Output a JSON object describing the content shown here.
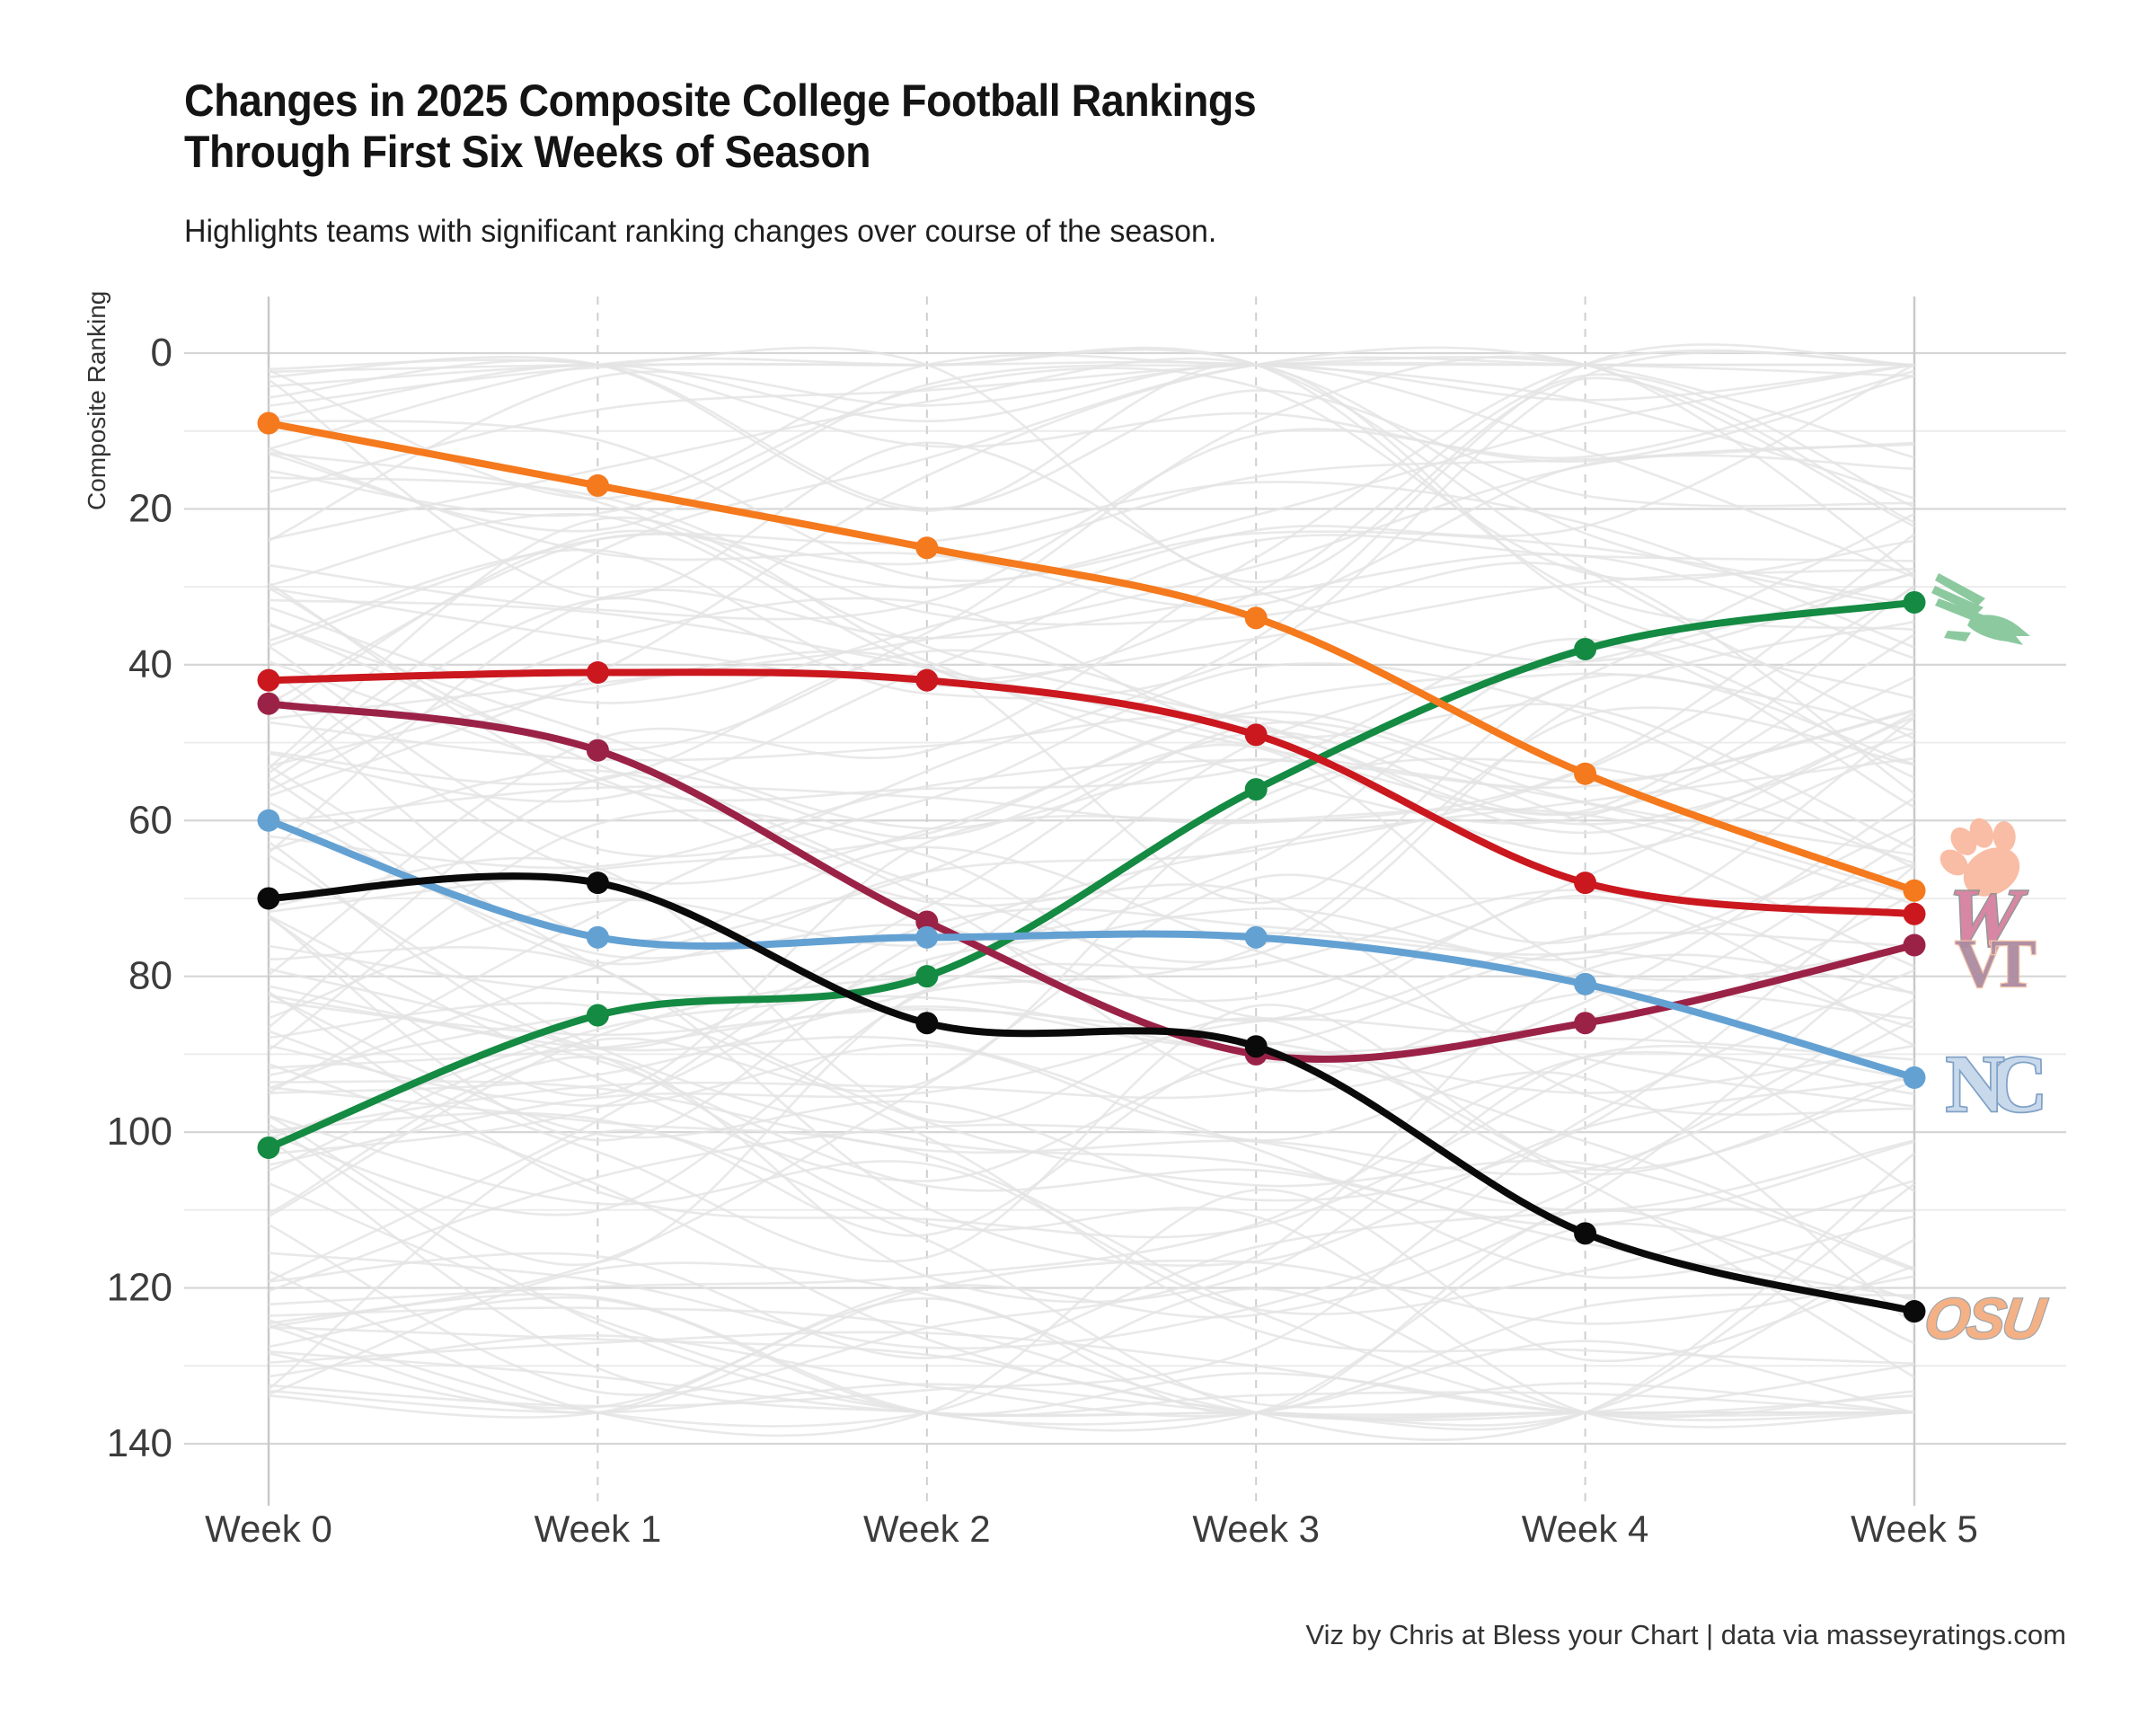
{
  "page": {
    "title_line1": "Changes in 2025 Composite College Football Rankings",
    "title_line2": "Through First Six Weeks of Season",
    "subtitle": "Highlights teams with significant ranking changes over course of the season.",
    "footer": "Viz by Chris at Bless your Chart | data via masseyratings.com"
  },
  "chart_data": {
    "type": "line",
    "title": "Changes in 2025 Composite College Football Rankings Through First Six Weeks of Season",
    "subtitle": "Highlights teams with significant ranking changes over course of the season.",
    "xlabel": "",
    "ylabel": "Composite Ranking",
    "categories": [
      "Week 0",
      "Week 1",
      "Week 2",
      "Week 3",
      "Week 4",
      "Week 5"
    ],
    "y_axis": {
      "ticks": [
        0,
        20,
        40,
        60,
        80,
        100,
        120,
        140
      ],
      "minor_ticks": [
        10,
        30,
        50,
        70,
        90,
        110,
        130
      ],
      "range": [
        0,
        140
      ],
      "inverted": true
    },
    "grid": true,
    "legend_position": "right-logos",
    "series": [
      {
        "name": "North Texas",
        "logo": "north-texas",
        "color": "#148a42",
        "values": [
          102,
          85,
          80,
          56,
          38,
          32
        ]
      },
      {
        "name": "Clemson",
        "logo": "clemson",
        "color": "#f5791d",
        "values": [
          9,
          17,
          25,
          34,
          54,
          69
        ]
      },
      {
        "name": "Wisconsin",
        "logo": "wisconsin",
        "color": "#cb171e",
        "values": [
          42,
          41,
          42,
          49,
          68,
          72
        ]
      },
      {
        "name": "Virginia Tech",
        "logo": "virginia-tech",
        "color": "#9b2247",
        "values": [
          45,
          51,
          73,
          90,
          86,
          76
        ]
      },
      {
        "name": "North Carolina",
        "logo": "north-carolina",
        "color": "#64a1d3",
        "values": [
          60,
          75,
          75,
          75,
          81,
          93
        ]
      },
      {
        "name": "Oklahoma State",
        "logo": "oklahoma-state",
        "color": "#0a0a0a",
        "values": [
          70,
          68,
          86,
          89,
          113,
          123
        ]
      }
    ],
    "background_series_count": 120,
    "logo_colors": {
      "north-texas": {
        "fill": "#86c79a"
      },
      "clemson": {
        "fill": "#f9b9a0"
      },
      "wisconsin": {
        "fill": "#d5819f",
        "stroke": "#909090"
      },
      "virginia-tech": {
        "fill": "#ac8ba0",
        "stroke": "#f4c3a6"
      },
      "north-carolina": {
        "fill": "#c6d8ea",
        "stroke": "#7b9dc4"
      },
      "oklahoma-state": {
        "fill": "#f4ad80",
        "stroke": "#9da1a4"
      }
    }
  }
}
